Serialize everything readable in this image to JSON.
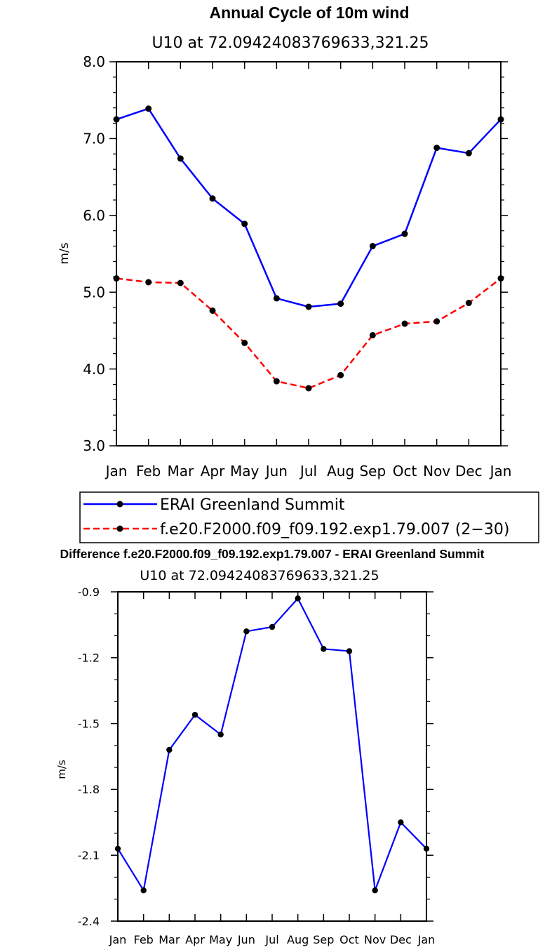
{
  "chart_data": [
    {
      "type": "line",
      "title": "Annual Cycle of 10m wind",
      "subtitle": "U10  at  72.09424083769633,321.25",
      "xlabel": "",
      "ylabel": "m/s",
      "categories": [
        "Jan",
        "Feb",
        "Mar",
        "Apr",
        "May",
        "Jun",
        "Jul",
        "Aug",
        "Sep",
        "Oct",
        "Nov",
        "Dec",
        "Jan"
      ],
      "ylim": [
        3.0,
        8.0
      ],
      "yticks": [
        "3.0",
        "4.0",
        "5.0",
        "6.0",
        "7.0",
        "8.0"
      ],
      "grid": false,
      "legend_position": "bottom",
      "series": [
        {
          "name": "ERAI Greenland Summit",
          "color": "#0000ff",
          "dash": "solid",
          "values": [
            7.25,
            7.39,
            6.74,
            6.22,
            5.89,
            4.92,
            4.81,
            4.85,
            5.6,
            5.76,
            6.88,
            6.81,
            7.25
          ]
        },
        {
          "name": "f.e20.F2000.f09_f09.192.exp1.79.007 (2−30)",
          "color": "#ff0000",
          "dash": "dashed",
          "values": [
            5.18,
            5.13,
            5.12,
            4.76,
            4.34,
            3.84,
            3.75,
            3.92,
            4.44,
            4.59,
            4.62,
            4.86,
            5.18
          ]
        }
      ]
    },
    {
      "type": "line",
      "title": "Difference f.e20.F2000.f09_f09.192.exp1.79.007 - ERAI Greenland Summit",
      "subtitle": "U10  at  72.09424083769633,321.25",
      "xlabel": "",
      "ylabel": "m/s",
      "categories": [
        "Jan",
        "Feb",
        "Mar",
        "Apr",
        "May",
        "Jun",
        "Jul",
        "Aug",
        "Sep",
        "Oct",
        "Nov",
        "Dec",
        "Jan"
      ],
      "ylim": [
        -2.4,
        -0.9
      ],
      "yticks": [
        "-2.4",
        "-2.1",
        "-1.8",
        "-1.5",
        "-1.2",
        "-0.9"
      ],
      "grid": false,
      "series": [
        {
          "name": "Difference",
          "color": "#0000ff",
          "dash": "solid",
          "values": [
            -2.07,
            -2.26,
            -1.62,
            -1.46,
            -1.55,
            -1.08,
            -1.06,
            -0.93,
            -1.16,
            -1.17,
            -2.26,
            -1.95,
            -2.07
          ]
        }
      ]
    }
  ]
}
